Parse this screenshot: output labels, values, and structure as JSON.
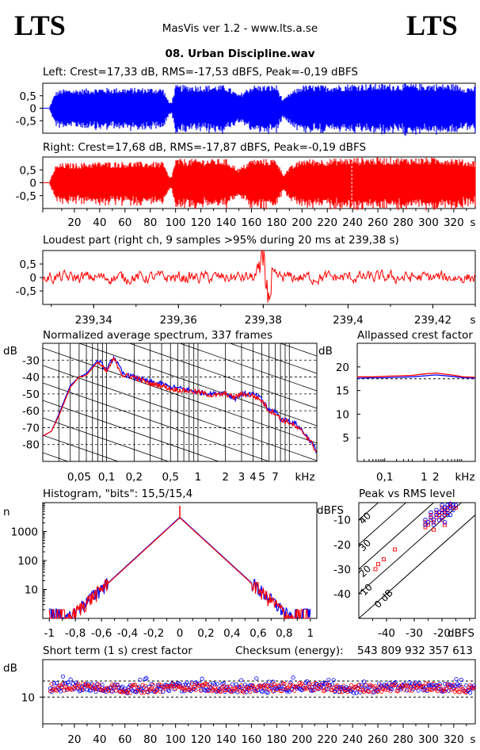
{
  "header": {
    "logo_left": "LTS",
    "logo_right": "LTS",
    "app_title": "MasVis ver 1.2 - www.lts.a.se",
    "file_name": "08. Urban Discipline.wav"
  },
  "colors": {
    "left": "#0000ff",
    "right": "#ff0000",
    "axis": "#000000"
  },
  "chart_data": [
    {
      "id": "left_waveform",
      "type": "area",
      "title": "Left: Crest=17,33 dB, RMS=-17,53 dBFS, Peak=-0,19 dBFS",
      "yticks": [
        "0.5",
        "0",
        "-0.5"
      ],
      "ylim": [
        -1,
        1
      ],
      "x_unit": "s",
      "x": [
        0,
        5,
        10,
        20,
        40,
        60,
        80,
        90,
        95,
        97,
        100,
        110,
        120,
        140,
        150,
        160,
        170,
        180,
        185,
        190,
        200,
        220,
        240,
        260,
        280,
        300,
        320,
        330
      ],
      "amplitude": [
        0,
        0.6,
        0.7,
        0.7,
        0.75,
        0.75,
        0.75,
        0.75,
        0.2,
        0.25,
        0.85,
        0.85,
        0.85,
        0.85,
        0.5,
        0.85,
        0.85,
        0.85,
        0.3,
        0.55,
        0.85,
        0.85,
        0.9,
        0.9,
        0.9,
        0.9,
        0.9,
        0.8
      ]
    },
    {
      "id": "right_waveform",
      "type": "area",
      "title": "Right: Crest=17,68 dB, RMS=-17,87 dBFS, Peak=-0,19 dBFS",
      "yticks": [
        "0.5",
        "0",
        "-0.5"
      ],
      "ylim": [
        -1,
        1
      ],
      "x_unit": "s",
      "xticks": [
        "20",
        "40",
        "60",
        "80",
        "100",
        "120",
        "140",
        "160",
        "180",
        "200",
        "220",
        "240",
        "260",
        "280",
        "300",
        "320",
        "s"
      ],
      "x": [
        0,
        5,
        10,
        20,
        40,
        60,
        80,
        90,
        95,
        97,
        100,
        110,
        120,
        140,
        150,
        160,
        170,
        180,
        185,
        190,
        200,
        220,
        240,
        260,
        280,
        300,
        320,
        330
      ],
      "amplitude": [
        0,
        0.6,
        0.7,
        0.7,
        0.75,
        0.75,
        0.75,
        0.75,
        0.2,
        0.25,
        0.85,
        0.85,
        0.85,
        0.85,
        0.5,
        0.85,
        0.85,
        0.85,
        0.3,
        0.55,
        0.85,
        0.85,
        0.9,
        0.9,
        0.9,
        0.9,
        0.9,
        0.8
      ],
      "marker_x": 239.38
    },
    {
      "id": "loudest_part",
      "type": "line",
      "title": "Loudest part (right ch, 9 samples >95% during 20 ms at 239,38 s)",
      "yticks": [
        "0.5",
        "0",
        "-0.5"
      ],
      "ylim": [
        -1,
        1
      ],
      "xlim": [
        239.328,
        239.43
      ],
      "xticks": [
        "239,34",
        "239,36",
        "239,38",
        "239,4",
        "239,42",
        "s"
      ]
    },
    {
      "id": "spectrum",
      "type": "line",
      "title": "Normalized average spectrum, 337 frames",
      "ylabel": "dB",
      "xlabel": "kHz",
      "yticks": [
        "-30",
        "-40",
        "-50",
        "-60",
        "-70",
        "-80"
      ],
      "xticks": [
        "0,05",
        "0,1",
        "0,2",
        "0,5",
        "1",
        "2",
        "3",
        "4",
        "5",
        "7",
        "kHz"
      ],
      "ylim": [
        -90,
        -20
      ],
      "x_khz": [
        0.02,
        0.025,
        0.03,
        0.04,
        0.05,
        0.06,
        0.08,
        0.1,
        0.12,
        0.15,
        0.2,
        0.3,
        0.4,
        0.5,
        0.7,
        1,
        1.5,
        2,
        2.5,
        3,
        4,
        5,
        6,
        7,
        8,
        10,
        12,
        15,
        18,
        20
      ],
      "left_db": [
        -75,
        -72,
        -62,
        -45,
        -40,
        -38,
        -30,
        -36,
        -28,
        -38,
        -40,
        -43,
        -44,
        -46,
        -47,
        -49,
        -50,
        -49,
        -53,
        -50,
        -50,
        -53,
        -60,
        -60,
        -65,
        -66,
        -68,
        -74,
        -80,
        -84
      ],
      "right_db": [
        -75,
        -72,
        -63,
        -46,
        -40,
        -39,
        -31,
        -37,
        -29,
        -39,
        -40,
        -44,
        -45,
        -47,
        -48,
        -49,
        -51,
        -50,
        -52,
        -50,
        -51,
        -54,
        -60,
        -61,
        -65,
        -67,
        -70,
        -74,
        -80,
        -85
      ]
    },
    {
      "id": "allpassed_crest",
      "type": "line",
      "title": "Allpassed crest factor",
      "ylabel": "dB",
      "xlabel": "kHz",
      "yticks": [
        "20",
        "15",
        "10",
        "5"
      ],
      "xticks": [
        "0,1",
        "1",
        "2",
        "kHz"
      ],
      "ylim": [
        0,
        25
      ],
      "x_khz": [
        0.02,
        0.05,
        0.1,
        0.2,
        0.5,
        1,
        2,
        5,
        10,
        20
      ],
      "left": [
        17.6,
        17.7,
        17.7,
        17.8,
        17.9,
        18.1,
        18.3,
        18.0,
        17.7,
        17.6
      ],
      "right": [
        17.9,
        17.9,
        18.0,
        18.1,
        18.2,
        18.5,
        18.7,
        18.3,
        17.9,
        17.8
      ]
    },
    {
      "id": "histogram",
      "type": "line",
      "title": "Histogram, \"bits\": 15,5/15,4",
      "ylabel": "n",
      "yticks": [
        "1000",
        "100",
        "10"
      ],
      "xticks": [
        "-1",
        "-0,8",
        "-0,6",
        "-0,4",
        "-0,2",
        "0",
        "0,2",
        "0,4",
        "0,6",
        "0,8",
        "1"
      ],
      "xlim": [
        -1.05,
        1.05
      ],
      "peak_at_zero": 3000
    },
    {
      "id": "peak_vs_rms",
      "type": "scatter",
      "title": "Peak vs RMS level",
      "ylabel": "dBFS",
      "xlabel": "dBFS",
      "yticks": [
        "-10",
        "-20",
        "-30",
        "-40"
      ],
      "xticks": [
        "-40",
        "-30",
        "-20",
        "dBFS"
      ],
      "crest_lines": [
        "40",
        "30",
        "20",
        "10",
        "0 dB"
      ],
      "xlim": [
        -50,
        -8
      ],
      "ylim": [
        -50,
        -3
      ],
      "left_points": [
        [
          -20,
          -6
        ],
        [
          -19,
          -5
        ],
        [
          -18,
          -4
        ],
        [
          -17,
          -5
        ],
        [
          -18,
          -6
        ],
        [
          -21,
          -7
        ],
        [
          -22,
          -8
        ],
        [
          -24,
          -9
        ],
        [
          -23,
          -10
        ],
        [
          -25,
          -11
        ],
        [
          -26,
          -12
        ],
        [
          -20,
          -9
        ],
        [
          -19,
          -7
        ],
        [
          -16,
          -4
        ],
        [
          -17,
          -3.5
        ],
        [
          -15,
          -4
        ],
        [
          -24,
          -7
        ],
        [
          -26,
          -10
        ],
        [
          -22,
          -6
        ],
        [
          -20,
          -4
        ],
        [
          -18,
          -8
        ],
        [
          -21,
          -10
        ],
        [
          -23,
          -12
        ],
        [
          -19,
          -11
        ],
        [
          -17,
          -8
        ],
        [
          -16,
          -6
        ]
      ],
      "right_points": [
        [
          -20,
          -7
        ],
        [
          -19,
          -6
        ],
        [
          -18,
          -5
        ],
        [
          -17,
          -4
        ],
        [
          -18,
          -7
        ],
        [
          -21,
          -8
        ],
        [
          -22,
          -9
        ],
        [
          -24,
          -10
        ],
        [
          -23,
          -11
        ],
        [
          -25,
          -12
        ],
        [
          -26,
          -13
        ],
        [
          -20,
          -10
        ],
        [
          -19,
          -8
        ],
        [
          -16,
          -5
        ],
        [
          -17,
          -4.5
        ],
        [
          -15,
          -5
        ],
        [
          -24,
          -8
        ],
        [
          -26,
          -11
        ],
        [
          -22,
          -7
        ],
        [
          -20,
          -5
        ],
        [
          -43,
          -28
        ],
        [
          -41,
          -26
        ],
        [
          -44,
          -30
        ],
        [
          -37,
          -22
        ],
        [
          -23,
          -14
        ],
        [
          -19,
          -12
        ]
      ]
    },
    {
      "id": "short_term_crest",
      "type": "scatter",
      "title": "Short term (1 s) crest factor",
      "ylabel": "dB",
      "yticks": [
        "10"
      ],
      "xticks": [
        "20",
        "40",
        "60",
        "80",
        "100",
        "120",
        "140",
        "160",
        "180",
        "200",
        "220",
        "240",
        "260",
        "280",
        "300",
        "320",
        "s"
      ],
      "xlim": [
        0,
        337
      ],
      "ylim": [
        0,
        24
      ],
      "dashed_levels": [
        16,
        10
      ],
      "checksum_label": "Checksum (energy):",
      "checksum_value": "543 809 932 357 613"
    }
  ]
}
